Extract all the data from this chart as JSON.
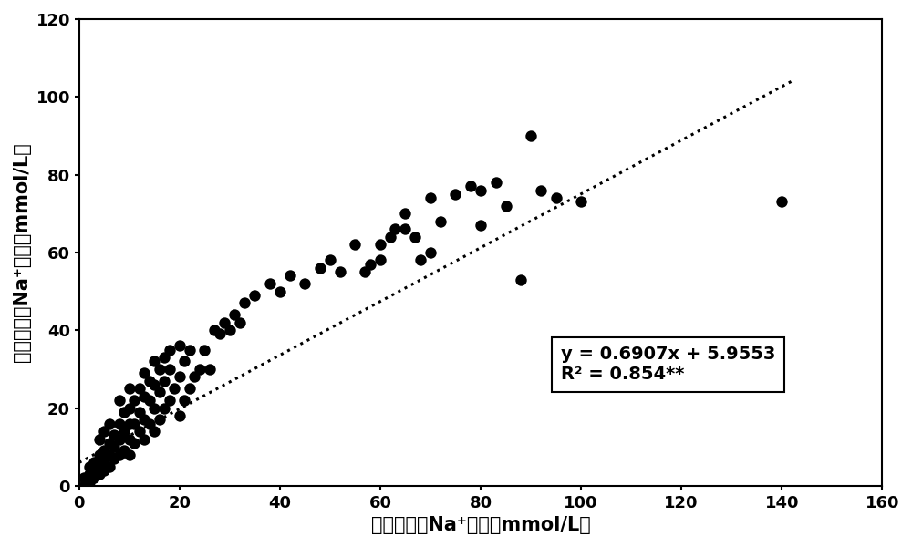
{
  "scatter_x": [
    1,
    1,
    2,
    2,
    2,
    3,
    3,
    3,
    4,
    4,
    4,
    4,
    5,
    5,
    5,
    5,
    6,
    6,
    6,
    6,
    7,
    7,
    7,
    8,
    8,
    8,
    8,
    9,
    9,
    9,
    10,
    10,
    10,
    10,
    10,
    11,
    11,
    11,
    12,
    12,
    12,
    13,
    13,
    13,
    13,
    14,
    14,
    14,
    15,
    15,
    15,
    15,
    16,
    16,
    16,
    17,
    17,
    17,
    18,
    18,
    18,
    19,
    20,
    20,
    20,
    21,
    21,
    22,
    22,
    23,
    24,
    25,
    26,
    27,
    28,
    29,
    30,
    31,
    32,
    33,
    35,
    38,
    40,
    42,
    45,
    48,
    50,
    52,
    55,
    57,
    58,
    60,
    60,
    62,
    63,
    65,
    65,
    67,
    68,
    70,
    70,
    72,
    75,
    78,
    80,
    80,
    83,
    85,
    88,
    90,
    92,
    95,
    100,
    140
  ],
  "scatter_y": [
    0,
    2,
    1,
    3,
    5,
    2,
    4,
    6,
    3,
    5,
    8,
    12,
    4,
    6,
    9,
    14,
    5,
    8,
    11,
    16,
    7,
    10,
    13,
    8,
    12,
    16,
    22,
    9,
    14,
    19,
    8,
    12,
    16,
    20,
    25,
    11,
    16,
    22,
    14,
    19,
    25,
    12,
    17,
    23,
    29,
    16,
    22,
    27,
    14,
    20,
    26,
    32,
    17,
    24,
    30,
    20,
    27,
    33,
    22,
    30,
    35,
    25,
    18,
    28,
    36,
    22,
    32,
    25,
    35,
    28,
    30,
    35,
    30,
    40,
    39,
    42,
    40,
    44,
    42,
    47,
    49,
    52,
    50,
    54,
    52,
    56,
    58,
    55,
    62,
    55,
    57,
    58,
    62,
    64,
    66,
    66,
    70,
    64,
    58,
    60,
    74,
    68,
    75,
    77,
    67,
    76,
    78,
    72,
    53,
    90,
    76,
    74,
    73,
    73
  ],
  "slope": 0.6907,
  "intercept": 5.9553,
  "r2": 0.854,
  "eq_text": "y = 0.6907x + 5.9553",
  "r2_text": "R² = 0.854**",
  "xlabel_cn": "实测可溶性Na",
  "xlabel_unit": "（mmol/L）",
  "ylabel_cn": "预测可溶性Na",
  "ylabel_unit": "（mmol/L）",
  "xlim": [
    0,
    160
  ],
  "ylim": [
    0,
    120
  ],
  "xticks": [
    0,
    20,
    40,
    60,
    80,
    100,
    120,
    140,
    160
  ],
  "yticks": [
    0,
    20,
    40,
    60,
    80,
    100,
    120
  ],
  "dot_color": "#000000",
  "line_color": "#000000",
  "bg_color": "#ffffff",
  "dot_size": 80,
  "font_size_label": 15,
  "font_size_tick": 13,
  "font_size_annotation": 14,
  "line_x_start": 0,
  "line_x_end": 142
}
